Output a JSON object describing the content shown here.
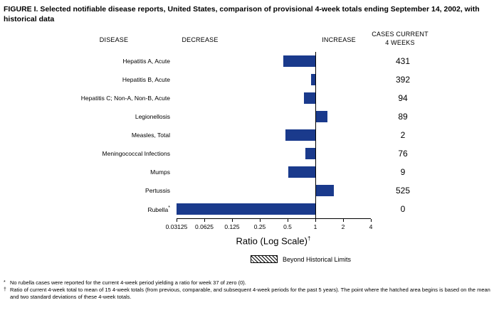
{
  "title": "FIGURE I. Selected notifiable disease reports, United States, comparison of provisional 4-week totals ending September 14, 2002, with historical data",
  "headers": {
    "disease": "DISEASE",
    "decrease": "DECREASE",
    "increase": "INCREASE",
    "cases_line1": "CASES CURRENT",
    "cases_line2": "4 WEEKS"
  },
  "chart_data": {
    "type": "bar",
    "orientation": "horizontal",
    "scale": "log2",
    "axis_at": 1,
    "xlim": [
      0.03125,
      4
    ],
    "x_ticks": [
      0.03125,
      0.0625,
      0.125,
      0.25,
      0.5,
      1,
      2,
      4
    ],
    "x_tick_labels": [
      "0.03125",
      "0.0625",
      "0.125",
      "0.25",
      "0.5",
      "1",
      "2",
      "4"
    ],
    "xlabel": "Ratio (Log Scale)",
    "xlabel_marker": "†",
    "bar_color": "#1a3a8c",
    "legend": "Beyond Historical Limits",
    "rows": [
      {
        "disease": "Hepatitis A, Acute",
        "ratio": 0.45,
        "cases": "431"
      },
      {
        "disease": "Hepatitis B, Acute",
        "ratio": 0.9,
        "cases": "392"
      },
      {
        "disease": "Hepatitis C; Non-A, Non-B, Acute",
        "ratio": 0.75,
        "cases": "94"
      },
      {
        "disease": "Legionellosis",
        "ratio": 1.35,
        "cases": "89"
      },
      {
        "disease": "Measles, Total",
        "ratio": 0.47,
        "cases": "2"
      },
      {
        "disease": "Meningococcal Infections",
        "ratio": 0.78,
        "cases": "76"
      },
      {
        "disease": "Mumps",
        "ratio": 0.51,
        "cases": "9"
      },
      {
        "disease": "Pertussis",
        "ratio": 1.6,
        "cases": "525"
      },
      {
        "disease": "Rubella",
        "marker": "*",
        "ratio": 0.03125,
        "cases": "0"
      }
    ]
  },
  "footnotes": [
    {
      "marker": "*",
      "text": "No rubella cases were reported for the current 4-week period yielding a ratio for week 37 of zero (0)."
    },
    {
      "marker": "†",
      "text": "Ratio of current 4-week total to mean of 15 4-week totals (from previous, comparable, and subsequent 4-week periods for the past 5 years). The point where the hatched area begins is based on the mean and two standard deviations of these 4-week totals."
    }
  ]
}
